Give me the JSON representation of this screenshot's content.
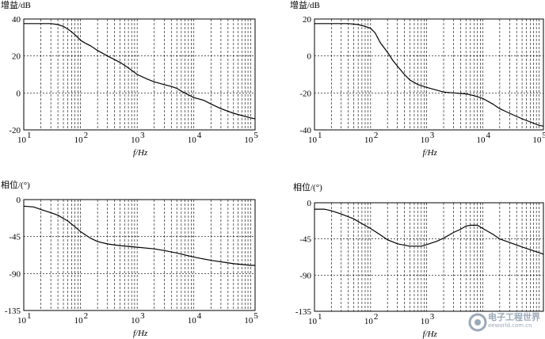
{
  "chart_data": [
    {
      "type": "line",
      "ylabel": "增益/dB",
      "xlabel": "f/Hz",
      "xscale": "log",
      "xlim": [
        10,
        120000
      ],
      "ylim": [
        -20,
        40
      ],
      "yticks": [
        "40",
        "20",
        "0",
        "-20"
      ],
      "xticks": [
        "10",
        "10",
        "10",
        "10",
        "10"
      ],
      "xtick_exponents": [
        "1",
        "2",
        "3",
        "4",
        "5"
      ],
      "x": [
        10,
        20,
        30,
        40,
        50,
        60,
        70,
        80,
        90,
        100,
        120,
        150,
        200,
        300,
        400,
        500,
        700,
        1000,
        1500,
        2000,
        3000,
        4000,
        5000,
        6000,
        8000,
        10000,
        15000,
        20000,
        30000,
        50000,
        100000,
        120000
      ],
      "series": [
        {
          "values": [
            37.5,
            37.5,
            37.5,
            37.0,
            36.0,
            34.5,
            33.0,
            31.5,
            30.0,
            28.5,
            27.0,
            25.5,
            23.0,
            20.0,
            18.0,
            16.5,
            13.5,
            10.0,
            7.5,
            6.0,
            4.5,
            3.5,
            2.5,
            1.0,
            -1.0,
            -2.5,
            -4.0,
            -6.0,
            -8.5,
            -11.0,
            -13.5,
            -14.0
          ]
        }
      ]
    },
    {
      "type": "line",
      "ylabel": "增益/dB",
      "xlabel": "f/Hz",
      "xscale": "log",
      "xlim": [
        10,
        120000
      ],
      "ylim": [
        -40,
        20
      ],
      "yticks": [
        "20",
        "0",
        "-20",
        "-40"
      ],
      "xticks": [
        "10",
        "10",
        "10",
        "10",
        "10"
      ],
      "xtick_exponents": [
        "1",
        "2",
        "3",
        "4",
        "5"
      ],
      "x": [
        10,
        20,
        40,
        60,
        80,
        100,
        120,
        150,
        200,
        250,
        300,
        400,
        500,
        700,
        1000,
        1500,
        2000,
        3000,
        5000,
        7000,
        10000,
        15000,
        20000,
        30000,
        50000,
        100000,
        120000
      ],
      "series": [
        {
          "values": [
            17.5,
            17.5,
            17.5,
            17.0,
            16.0,
            15.0,
            12.5,
            7.0,
            2.0,
            -2.5,
            -5.5,
            -10.0,
            -13.0,
            -15.5,
            -17.0,
            -18.5,
            -19.5,
            -20.0,
            -20.5,
            -21.5,
            -23.0,
            -26.0,
            -28.5,
            -31.0,
            -34.0,
            -37.5,
            -38.0
          ]
        }
      ]
    },
    {
      "type": "line",
      "ylabel": "相位/(°)",
      "xlabel": "f/Hz",
      "xscale": "log",
      "xlim": [
        10,
        120000
      ],
      "ylim": [
        -135,
        0
      ],
      "yticks": [
        "0",
        "-45",
        "-90",
        "-135"
      ],
      "xticks": [
        "10",
        "10",
        "10",
        "10",
        "10"
      ],
      "xtick_exponents": [
        "1",
        "2",
        "3",
        "4",
        "5"
      ],
      "x": [
        10,
        15,
        20,
        30,
        40,
        50,
        60,
        70,
        80,
        100,
        150,
        200,
        300,
        500,
        1000,
        2000,
        3000,
        5000,
        10000,
        20000,
        50000,
        100000,
        120000
      ],
      "series": [
        {
          "values": [
            -8,
            -9,
            -12,
            -16,
            -19,
            -23,
            -26,
            -30,
            -33,
            -39,
            -47,
            -51,
            -54,
            -56,
            -58,
            -60,
            -62,
            -65,
            -70,
            -74,
            -78,
            -80,
            -80
          ]
        }
      ]
    },
    {
      "type": "line",
      "ylabel": "相位/(°)",
      "xlabel": "f/Hz",
      "xscale": "log",
      "xlim": [
        10,
        120000
      ],
      "ylim": [
        -135,
        0
      ],
      "yticks": [
        "0",
        "-45",
        "-90",
        "-135"
      ],
      "xticks": [
        "10",
        "10",
        "10"
      ],
      "xtick_exponents": [
        "1",
        "2",
        "3"
      ],
      "x": [
        10,
        15,
        20,
        30,
        50,
        70,
        100,
        150,
        200,
        300,
        500,
        800,
        1000,
        1500,
        2000,
        3000,
        4000,
        5000,
        6000,
        8000,
        10000,
        15000,
        20000,
        50000,
        100000,
        120000
      ],
      "series": [
        {
          "values": [
            -8,
            -8,
            -10,
            -14,
            -20,
            -26,
            -32,
            -40,
            -46,
            -51,
            -54,
            -54,
            -52,
            -48,
            -44,
            -37,
            -33,
            -29,
            -28,
            -28,
            -32,
            -39,
            -45,
            -55,
            -62,
            -64
          ]
        }
      ]
    }
  ],
  "watermark": {
    "text": "电子工程世界",
    "sub": "eeworld.com.cn",
    "colors": {
      "logo": "#9aa9b8"
    }
  }
}
